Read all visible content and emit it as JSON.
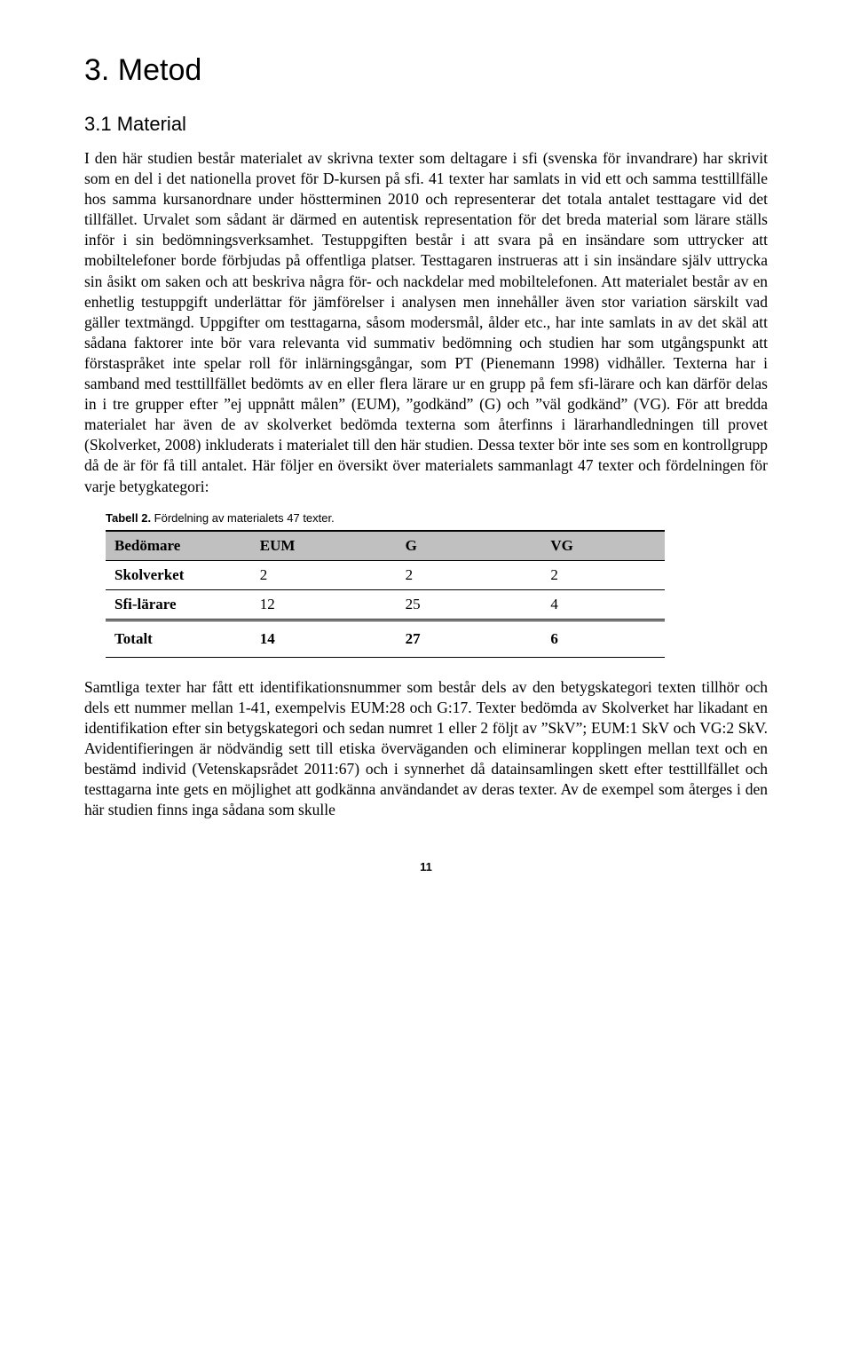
{
  "headings": {
    "main": "3. Metod",
    "sub": "3.1 Material"
  },
  "paragraphs": {
    "p1": "I den här studien består materialet av skrivna texter som deltagare i sfi (svenska för invandrare) har skrivit som en del i det nationella provet för D-kursen på sfi. 41 texter har samlats in vid ett och samma testtillfälle hos samma kursanordnare under höstterminen 2010 och representerar det totala antalet testtagare vid det tillfället. Urvalet som sådant är därmed en autentisk representation för det breda material som lärare ställs inför i sin bedömningsverksamhet. Testuppgiften består i att svara på en insändare som uttrycker att mobiltelefoner borde förbjudas på offentliga platser. Testtagaren instrueras att i sin insändare själv uttrycka sin åsikt om saken och att beskriva några för- och nackdelar med mobiltelefonen. Att materialet består av en enhetlig testuppgift underlättar för jämförelser i analysen men innehåller även stor variation särskilt vad gäller textmängd. Uppgifter om testtagarna, såsom modersmål, ålder etc., har inte samlats in av det skäl att sådana faktorer inte bör vara relevanta vid summativ bedömning och studien har som utgångspunkt att förstaspråket inte spelar roll för inlärningsgångar, som PT (Pienemann 1998) vidhåller. Texterna har i samband med testtillfället bedömts av en eller flera lärare ur en grupp på fem sfi-lärare och kan därför delas in i tre grupper efter ”ej uppnått målen” (EUM), ”godkänd” (G) och ”väl godkänd” (VG). För att bredda materialet har även de av skolverket bedömda texterna som återfinns i lärarhandledningen till provet (Skolverket, 2008) inkluderats i materialet till den här studien. Dessa texter bör inte ses som en kontrollgrupp då de är för få till antalet. Här följer en översikt över materialets sammanlagt 47 texter och fördelningen för varje betygkategori:",
    "p2": "Samtliga texter har fått ett identifikationsnummer som består dels av den betygskategori texten tillhör och dels ett nummer mellan 1-41, exempelvis EUM:28 och G:17. Texter bedömda av Skolverket har likadant en identifikation efter sin betygskategori och sedan numret 1 eller 2 följt av ”SkV”; EUM:1 SkV och VG:2 SkV. Avidentifieringen är nödvändig sett till etiska överväganden och eliminerar kopplingen mellan text och en bestämd individ (Vetenskapsrådet 2011:67) och i synnerhet då datainsamlingen skett efter testtillfället och testtagarna inte gets en möjlighet att godkänna användandet av deras texter. Av de exempel som återges i den här studien finns inga sådana som skulle"
  },
  "table": {
    "caption_bold": "Tabell 2.",
    "caption_rest": " Fördelning av materialets 47 texter.",
    "header_bg": "#c0c0c0",
    "columns": [
      "Bedömare",
      "EUM",
      "G",
      "VG"
    ],
    "rows": [
      {
        "label": "Skolverket",
        "cells": [
          "2",
          "2",
          "2"
        ]
      },
      {
        "label": "Sfi-lärare",
        "cells": [
          "12",
          "25",
          "4"
        ]
      }
    ],
    "total": {
      "label": "Totalt",
      "cells": [
        "14",
        "27",
        "6"
      ]
    }
  },
  "page_number": "11"
}
